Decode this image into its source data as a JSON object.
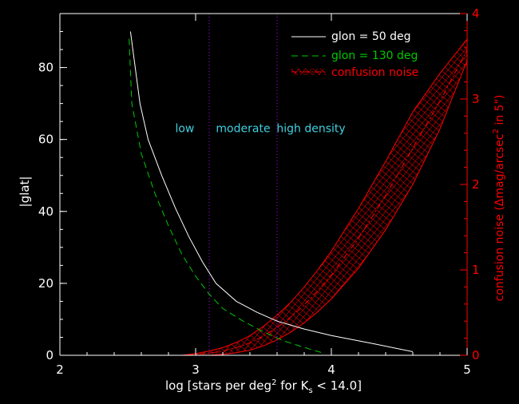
{
  "chart_data": {
    "type": "line",
    "xlabel": {
      "pre": "log [stars per deg",
      "sup": "2",
      "mid": " for K",
      "sub": "s",
      "post": " < 14.0]"
    },
    "ylabel": "|glat|",
    "y2label": {
      "pre": "confusion noise (Δmag/arcsec",
      "sup": "2",
      "post": " in 5\")"
    },
    "xlim": [
      2,
      5
    ],
    "ylim": [
      0,
      95
    ],
    "y2lim": [
      0,
      4
    ],
    "xticks": [
      2,
      3,
      4,
      5
    ],
    "xtick_labels": [
      "2",
      "3",
      "4",
      "5"
    ],
    "yticks": [
      0,
      20,
      40,
      60,
      80
    ],
    "ytick_labels": [
      "0",
      "20",
      "40",
      "60",
      "80"
    ],
    "y2ticks": [
      0,
      1,
      2,
      3,
      4
    ],
    "y2tick_labels": [
      "0",
      "1",
      "2",
      "3",
      "4"
    ],
    "region_boundaries": [
      3.1,
      3.6
    ],
    "region_labels": [
      {
        "text": "low",
        "x": 2.92,
        "y": 62
      },
      {
        "text": "moderate",
        "x": 3.35,
        "y": 62
      },
      {
        "text": "high density",
        "x": 3.85,
        "y": 62
      }
    ],
    "legend": {
      "position": "top-right",
      "entries": [
        "glon = 50 deg",
        "glon = 130 deg",
        "confusion noise"
      ]
    },
    "series": [
      {
        "name": "glon = 50 deg",
        "color": "#ffffff",
        "style": "solid",
        "x": [
          2.52,
          2.59,
          2.65,
          2.75,
          2.85,
          2.95,
          3.05,
          3.15,
          3.3,
          3.45,
          3.6,
          3.8,
          4.0,
          4.3,
          4.6
        ],
        "y": [
          90,
          70,
          60,
          50,
          41,
          33,
          26,
          20,
          15,
          12,
          9.5,
          7.3,
          5.5,
          3.3,
          1
        ]
      },
      {
        "name": "glon = 130 deg",
        "color": "#00c800",
        "style": "dashed",
        "x": [
          2.51,
          2.53,
          2.6,
          2.7,
          2.8,
          2.9,
          3.0,
          3.1,
          3.2,
          3.35,
          3.5,
          3.65,
          3.8,
          3.95
        ],
        "y": [
          88,
          70,
          56,
          45,
          36,
          28,
          22,
          17,
          13,
          9.5,
          6.5,
          4,
          2.2,
          0.5
        ]
      }
    ],
    "band": {
      "name": "confusion noise",
      "color": "#ff0000",
      "x": [
        2.5,
        2.7,
        2.9,
        3.0,
        3.1,
        3.2,
        3.3,
        3.4,
        3.5,
        3.6,
        3.7,
        3.8,
        3.9,
        4.0,
        4.2,
        4.4,
        4.6,
        4.8,
        5.0
      ],
      "lower": [
        0,
        0,
        0,
        0,
        0,
        0.01,
        0.03,
        0.06,
        0.11,
        0.18,
        0.27,
        0.38,
        0.51,
        0.66,
        1.02,
        1.47,
        2.0,
        2.65,
        3.45
      ],
      "upper": [
        0,
        0,
        0,
        0.02,
        0.05,
        0.09,
        0.15,
        0.23,
        0.34,
        0.47,
        0.62,
        0.8,
        1.0,
        1.22,
        1.72,
        2.27,
        2.85,
        3.3,
        3.7
      ]
    }
  }
}
